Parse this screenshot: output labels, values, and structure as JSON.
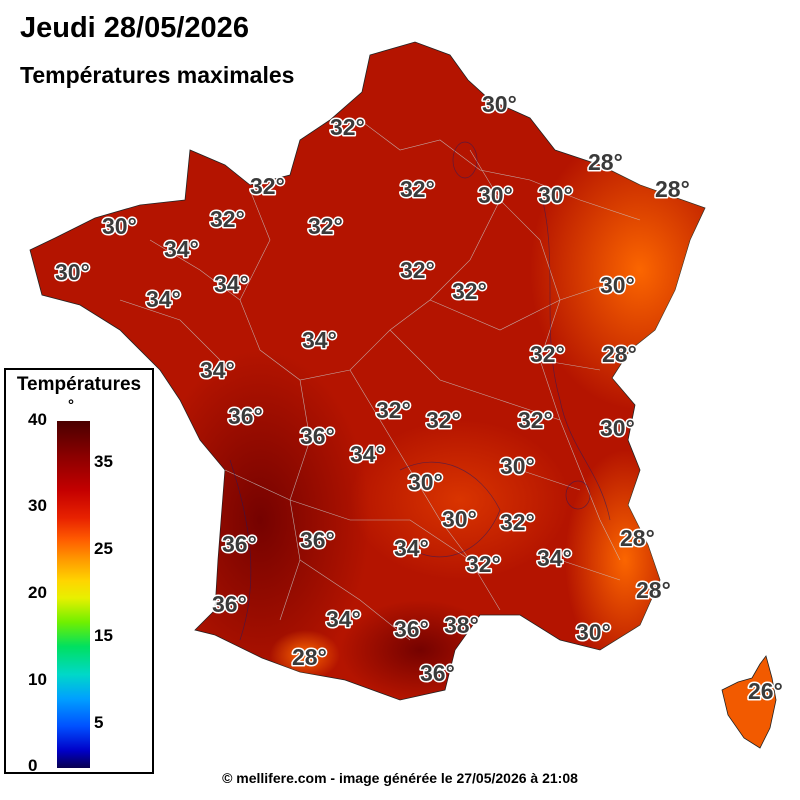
{
  "header": {
    "title": "Jeudi 28/05/2026",
    "subtitle": "Températures maximales"
  },
  "legend": {
    "title": "Températures",
    "unit": "°",
    "scale_min": 0,
    "scale_max": 40,
    "major_ticks": [
      "40",
      "30",
      "20",
      "10",
      "0"
    ],
    "minor_ticks": [
      "35",
      "25",
      "15",
      "5"
    ]
  },
  "colors": {
    "hot_dark": "#7a0000",
    "hot": "#b41400",
    "warm": "#d83000",
    "mild": "#f25a00"
  },
  "labels": [
    {
      "text": "30°",
      "value": 30
    },
    {
      "text": "32°",
      "value": 32
    },
    {
      "text": "28°",
      "value": 28
    },
    {
      "text": "32°",
      "value": 32
    },
    {
      "text": "30°",
      "value": 30
    },
    {
      "text": "30°",
      "value": 30
    },
    {
      "text": "28°",
      "value": 28
    },
    {
      "text": "32°",
      "value": 32
    },
    {
      "text": "30°",
      "value": 30
    },
    {
      "text": "32°",
      "value": 32
    },
    {
      "text": "32°",
      "value": 32
    },
    {
      "text": "34°",
      "value": 34
    },
    {
      "text": "30°",
      "value": 30
    },
    {
      "text": "32°",
      "value": 32
    },
    {
      "text": "32°",
      "value": 32
    },
    {
      "text": "34°",
      "value": 34
    },
    {
      "text": "30°",
      "value": 30
    },
    {
      "text": "34°",
      "value": 34
    },
    {
      "text": "34°",
      "value": 34
    },
    {
      "text": "32°",
      "value": 32
    },
    {
      "text": "28°",
      "value": 28
    },
    {
      "text": "34°",
      "value": 34
    },
    {
      "text": "36°",
      "value": 36
    },
    {
      "text": "32°",
      "value": 32
    },
    {
      "text": "32°",
      "value": 32
    },
    {
      "text": "32°",
      "value": 32
    },
    {
      "text": "30°",
      "value": 30
    },
    {
      "text": "36°",
      "value": 36
    },
    {
      "text": "34°",
      "value": 34
    },
    {
      "text": "30°",
      "value": 30
    },
    {
      "text": "30°",
      "value": 30
    },
    {
      "text": "30°",
      "value": 30
    },
    {
      "text": "32°",
      "value": 32
    },
    {
      "text": "36°",
      "value": 36
    },
    {
      "text": "36°",
      "value": 36
    },
    {
      "text": "34°",
      "value": 34
    },
    {
      "text": "28°",
      "value": 28
    },
    {
      "text": "32°",
      "value": 32
    },
    {
      "text": "34°",
      "value": 34
    },
    {
      "text": "36°",
      "value": 36
    },
    {
      "text": "28°",
      "value": 28
    },
    {
      "text": "34°",
      "value": 34
    },
    {
      "text": "36°",
      "value": 36
    },
    {
      "text": "38°",
      "value": 38
    },
    {
      "text": "30°",
      "value": 30
    },
    {
      "text": "28°",
      "value": 28
    },
    {
      "text": "36°",
      "value": 36
    },
    {
      "text": "26°",
      "value": 26
    }
  ],
  "footer": {
    "credit": "© mellifere.com - image générée le 27/05/2026 à 21:08"
  }
}
